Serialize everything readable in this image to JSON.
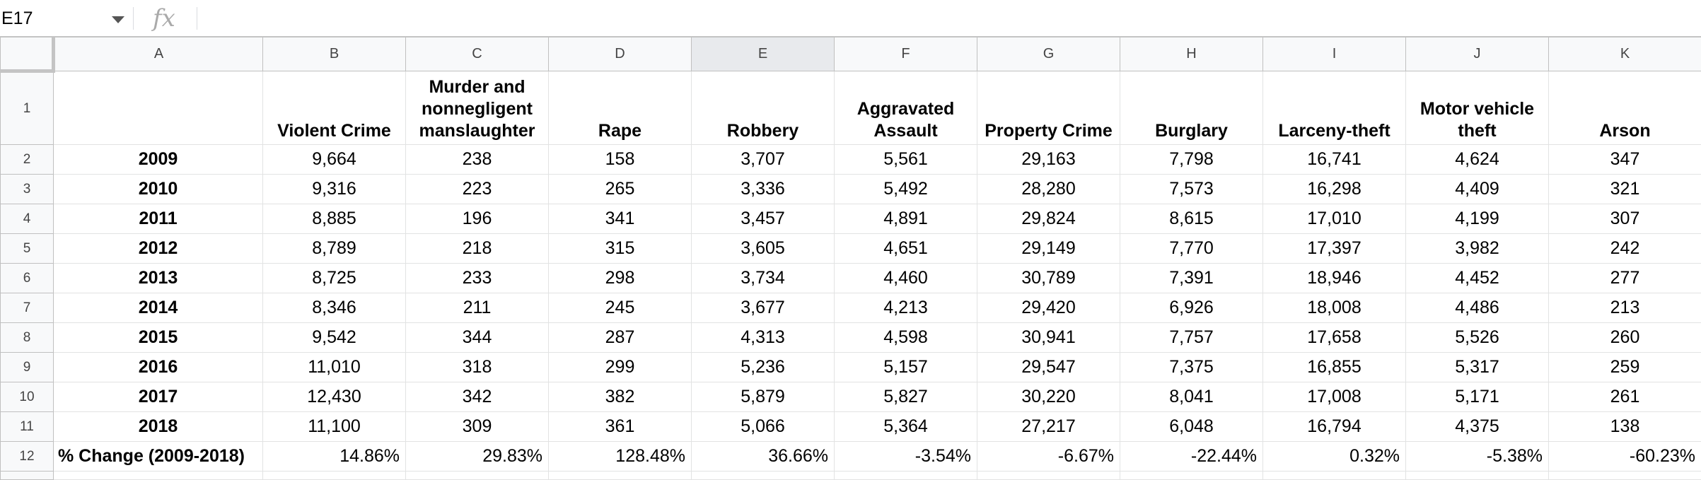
{
  "formula_bar": {
    "cell_ref": "E17",
    "fx_label": "fx",
    "formula_value": ""
  },
  "sheet": {
    "columns": [
      "A",
      "B",
      "C",
      "D",
      "E",
      "F",
      "G",
      "H",
      "I",
      "J",
      "K"
    ],
    "active_column": "E",
    "header_row": {
      "row_number": "1",
      "cells": [
        "",
        "Violent Crime",
        "Murder and nonnegligent manslaughter",
        "Rape",
        "Robbery",
        "Aggravated Assault",
        "Property Crime",
        "Burglary",
        "Larceny-theft",
        "Motor vehicle theft",
        "Arson"
      ]
    },
    "data_rows": [
      {
        "row_number": "2",
        "cells": [
          "2009",
          "9,664",
          "238",
          "158",
          "3,707",
          "5,561",
          "29,163",
          "7,798",
          "16,741",
          "4,624",
          "347"
        ]
      },
      {
        "row_number": "3",
        "cells": [
          "2010",
          "9,316",
          "223",
          "265",
          "3,336",
          "5,492",
          "28,280",
          "7,573",
          "16,298",
          "4,409",
          "321"
        ]
      },
      {
        "row_number": "4",
        "cells": [
          "2011",
          "8,885",
          "196",
          "341",
          "3,457",
          "4,891",
          "29,824",
          "8,615",
          "17,010",
          "4,199",
          "307"
        ]
      },
      {
        "row_number": "5",
        "cells": [
          "2012",
          "8,789",
          "218",
          "315",
          "3,605",
          "4,651",
          "29,149",
          "7,770",
          "17,397",
          "3,982",
          "242"
        ]
      },
      {
        "row_number": "6",
        "cells": [
          "2013",
          "8,725",
          "233",
          "298",
          "3,734",
          "4,460",
          "30,789",
          "7,391",
          "18,946",
          "4,452",
          "277"
        ]
      },
      {
        "row_number": "7",
        "cells": [
          "2014",
          "8,346",
          "211",
          "245",
          "3,677",
          "4,213",
          "29,420",
          "6,926",
          "18,008",
          "4,486",
          "213"
        ]
      },
      {
        "row_number": "8",
        "cells": [
          "2015",
          "9,542",
          "344",
          "287",
          "4,313",
          "4,598",
          "30,941",
          "7,757",
          "17,658",
          "5,526",
          "260"
        ]
      },
      {
        "row_number": "9",
        "cells": [
          "2016",
          "11,010",
          "318",
          "299",
          "5,236",
          "5,157",
          "29,547",
          "7,375",
          "16,855",
          "5,317",
          "259"
        ]
      },
      {
        "row_number": "10",
        "cells": [
          "2017",
          "12,430",
          "342",
          "382",
          "5,879",
          "5,827",
          "30,220",
          "8,041",
          "17,008",
          "5,171",
          "261"
        ]
      },
      {
        "row_number": "11",
        "cells": [
          "2018",
          "11,100",
          "309",
          "361",
          "5,066",
          "5,364",
          "27,217",
          "6,048",
          "16,794",
          "4,375",
          "138"
        ]
      }
    ],
    "change_row": {
      "row_number": "12",
      "cells": [
        "% Change (2009-2018)",
        "14.86%",
        "29.83%",
        "128.48%",
        "36.66%",
        "-3.54%",
        "-6.67%",
        "-22.44%",
        "0.32%",
        "-5.38%",
        "-60.23%"
      ]
    }
  }
}
